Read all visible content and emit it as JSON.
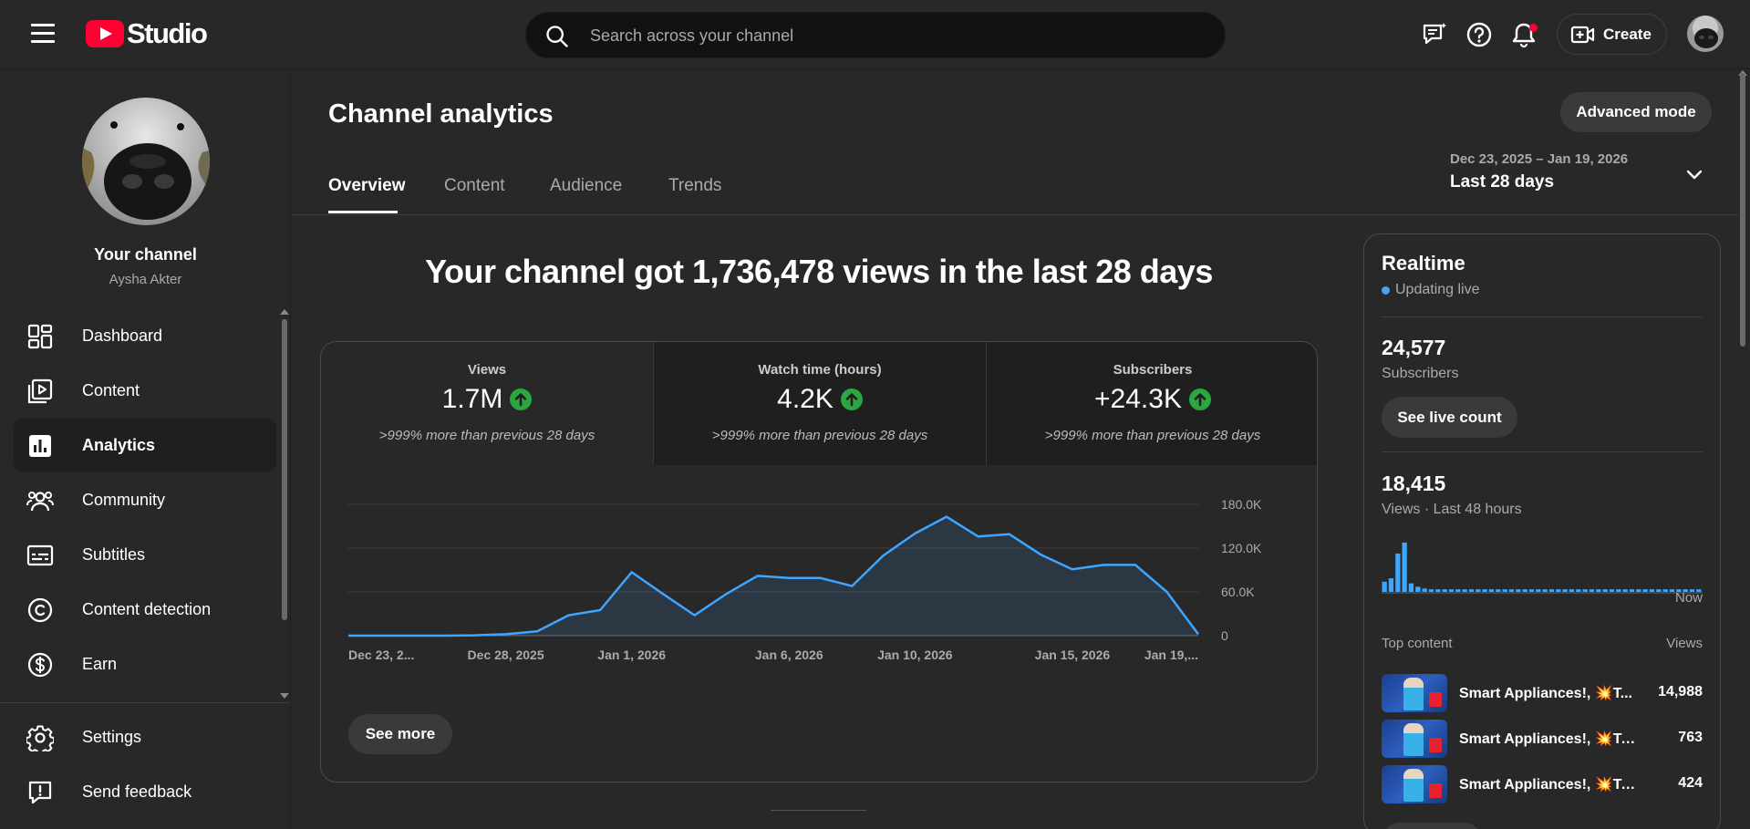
{
  "header": {
    "logo_text": "Studio",
    "search_placeholder": "Search across your channel",
    "create_label": "Create"
  },
  "sidebar": {
    "your_channel": "Your channel",
    "channel_name": "Aysha Akter",
    "items": [
      {
        "label": "Dashboard",
        "icon": "dashboard-icon"
      },
      {
        "label": "Content",
        "icon": "content-icon"
      },
      {
        "label": "Analytics",
        "icon": "analytics-icon",
        "active": true
      },
      {
        "label": "Community",
        "icon": "community-icon"
      },
      {
        "label": "Subtitles",
        "icon": "subtitles-icon"
      },
      {
        "label": "Content detection",
        "icon": "copyright-icon"
      },
      {
        "label": "Earn",
        "icon": "dollar-icon"
      }
    ],
    "bottom_items": [
      {
        "label": "Settings",
        "icon": "gear-icon"
      },
      {
        "label": "Send feedback",
        "icon": "feedback-icon"
      }
    ]
  },
  "main": {
    "title": "Channel analytics",
    "advanced_mode": "Advanced mode",
    "tabs": [
      "Overview",
      "Content",
      "Audience",
      "Trends"
    ],
    "active_tab": "Overview",
    "date_range": "Dec 23, 2025 – Jan 19, 2026",
    "date_label": "Last 28 days",
    "headline": "Your channel got 1,736,478 views in the last 28 days",
    "metrics": [
      {
        "title": "Views",
        "value": "1.7M",
        "note": ">999% more than previous 28 days",
        "trend": "up"
      },
      {
        "title": "Watch time (hours)",
        "value": "4.2K",
        "note": ">999% more than previous 28 days",
        "trend": "up"
      },
      {
        "title": "Subscribers",
        "value": "+24.3K",
        "note": ">999% more than previous 28 days",
        "trend": "up"
      }
    ],
    "see_more": "See more"
  },
  "chart_data": {
    "type": "area",
    "x": [
      "Dec 23",
      "Dec 24",
      "Dec 25",
      "Dec 26",
      "Dec 27",
      "Dec 28",
      "Dec 29",
      "Dec 30",
      "Dec 31",
      "Jan 1",
      "Jan 2",
      "Jan 3",
      "Jan 4",
      "Jan 5",
      "Jan 6",
      "Jan 7",
      "Jan 8",
      "Jan 9",
      "Jan 10",
      "Jan 11",
      "Jan 12",
      "Jan 13",
      "Jan 14",
      "Jan 15",
      "Jan 16",
      "Jan 17",
      "Jan 18",
      "Jan 19"
    ],
    "values": [
      0,
      0,
      0,
      0,
      500,
      2000,
      6000,
      28000,
      35000,
      87000,
      57000,
      28000,
      57000,
      82000,
      79000,
      79000,
      68000,
      110000,
      140000,
      163000,
      136000,
      139000,
      111000,
      91000,
      97000,
      97000,
      60000,
      2000
    ],
    "x_tick_labels": [
      "Dec 23, 2...",
      "Dec 28, 2025",
      "Jan 1, 2026",
      "Jan 6, 2026",
      "Jan 10, 2026",
      "Jan 15, 2026",
      "Jan 19,..."
    ],
    "y_tick_labels": [
      "180.0K",
      "120.0K",
      "60.0K",
      "0"
    ],
    "y_ticks": [
      180000,
      120000,
      60000,
      0
    ],
    "ylim": [
      0,
      180000
    ],
    "grid": true,
    "color": "#3ea6ff"
  },
  "realtime": {
    "title": "Realtime",
    "status": "Updating live",
    "subscribers": "24,577",
    "subscribers_label": "Subscribers",
    "live_count_button": "See live count",
    "views": "18,415",
    "views_label": "Views · Last 48 hours",
    "now_label": "Now",
    "spark_values": [
      12,
      16,
      45,
      58,
      10,
      6,
      4,
      3,
      3,
      3,
      3,
      3,
      3,
      3,
      3,
      3,
      3,
      3,
      3,
      3,
      3,
      3,
      3,
      3,
      3,
      3,
      3,
      3,
      3,
      3,
      3,
      3,
      3,
      3,
      3,
      3,
      3,
      3,
      3,
      3,
      3,
      3,
      3,
      3,
      3,
      3,
      3,
      3
    ],
    "top_content_label": "Top content",
    "views_col_label": "Views",
    "top_content": [
      {
        "title": "Smart Appliances!, 💥T...",
        "views": "14,988"
      },
      {
        "title": "Smart Appliances!, 💥Tool...",
        "views": "763"
      },
      {
        "title": "Smart Appliances!, 💥Tool...",
        "views": "424"
      }
    ]
  }
}
